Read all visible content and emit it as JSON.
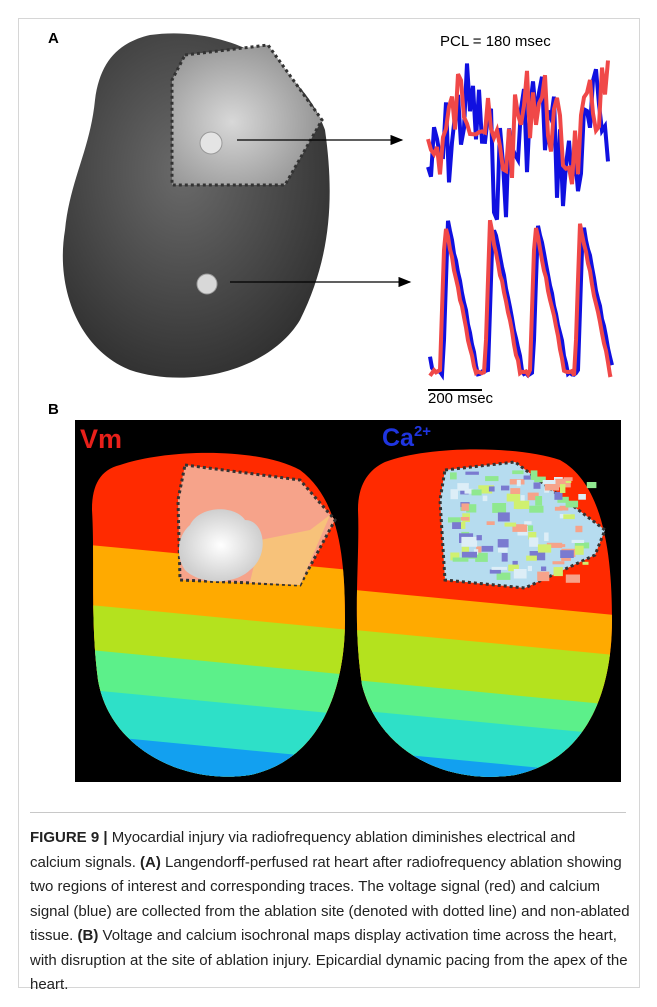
{
  "panel_a": {
    "label": "A",
    "top_trace_label": "PCL = 180 msec",
    "scale_bar_label": "200 msec"
  },
  "panel_b": {
    "label": "B",
    "left_map_label": "Vm",
    "right_map_label": "Ca",
    "right_map_superscript": "2+"
  },
  "caption": {
    "label": "FIGURE 9 |",
    "text_1": "Myocardial injury via radiofrequency ablation diminishes electrical and calcium signals.",
    "panel_a": "(A)",
    "text_2": "Langendorff-perfused rat heart after radiofrequency ablation showing two regions of interest and corresponding traces. The voltage signal (red) and calcium signal (blue) are collected from the ablation site (denoted with dotted line) and non-ablated tissue.",
    "panel_b": "(B)",
    "text_3": "Voltage and calcium isochronal maps display activation time across the heart, with disruption at the site of ablation injury. Epicardial dynamic pacing from the apex of the heart."
  }
}
